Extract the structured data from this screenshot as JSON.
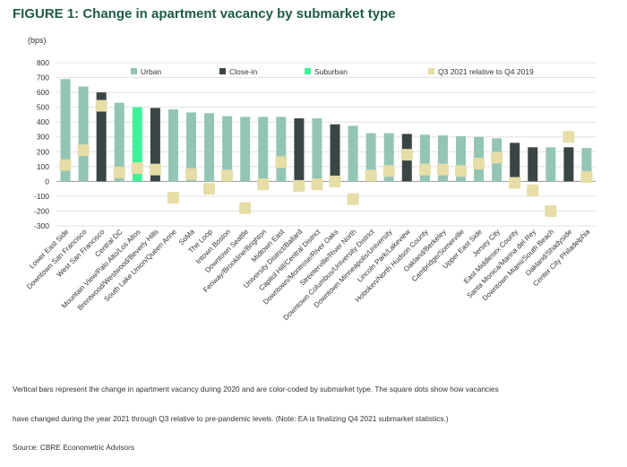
{
  "header": {
    "title": "FIGURE 1: Change in apartment vacancy by submarket type"
  },
  "footer": {
    "note_line1": "Vertical bars represent the change in apartment vacancy during 2020 and are color-coded by submarket type. The square dots show how vacancies",
    "note_line2": "have changed during the year 2021 through Q3 relative to pre-pandemic levels. (Note: EA is finalizing Q4 2021 submarket statistics.)",
    "source": "Source: CBRE Econometric Advisors"
  },
  "colors": {
    "urban": "#93c5b4",
    "close_in": "#3a4545",
    "suburban": "#3ff29a",
    "dot": "#e6dda7",
    "grid": "#e2e2e2",
    "zero_line": "#9a9a9a"
  },
  "chart_data": {
    "type": "bar",
    "ylabel": "(bps)",
    "ylim": [
      -300,
      800
    ],
    "yticks": [
      800,
      700,
      600,
      500,
      400,
      300,
      200,
      100,
      0,
      -100,
      -200,
      -300
    ],
    "grid": true,
    "legend": {
      "position": "top",
      "entries": [
        {
          "key": "urban",
          "label": "Urban"
        },
        {
          "key": "close_in",
          "label": "Close-in"
        },
        {
          "key": "suburban",
          "label": "Suburban"
        },
        {
          "key": "dot",
          "label": "Q3 2021 relative to Q4 2019"
        }
      ]
    },
    "categories": [
      "Lower East Side",
      "Downtown San Francisco",
      "West San Francisco",
      "Central DC",
      "Mountain View/Palo Alto/Los Altos",
      "Brentwood/Westwood/Beverly Hills",
      "South Lake Union/Queen Anne",
      "SoMa",
      "The Loop",
      "Intown Boston",
      "Downtown Seattle",
      "Fenway/Brookline/Brighton",
      "Midtown East",
      "University District/Ballard",
      "Capitol Hill/Central District",
      "Downtown/Montrose/River Oaks",
      "Streeterville/River North",
      "Downtown Columbus/University District",
      "Downtown Minneapolis/University",
      "Lincoln Park/Lakeview",
      "Hoboken/North Hudson County",
      "Oakland/Berkeley",
      "Cambridge/Somerville",
      "Upper East Side",
      "Jersey City",
      "East Middlesex County",
      "Santa Monica/Marina del Rey",
      "Downtown Miami/South Beach",
      "Oakland/Shadyside",
      "Center City Philadelphia"
    ],
    "types": [
      "urban",
      "urban",
      "close_in",
      "urban",
      "suburban",
      "close_in",
      "urban",
      "urban",
      "urban",
      "urban",
      "urban",
      "urban",
      "urban",
      "close_in",
      "urban",
      "close_in",
      "urban",
      "urban",
      "urban",
      "close_in",
      "urban",
      "urban",
      "urban",
      "urban",
      "urban",
      "close_in",
      "close_in",
      "urban",
      "close_in",
      "urban"
    ],
    "series": [
      {
        "name": "Vacancy change 2020",
        "values": [
          690,
          640,
          600,
          530,
          500,
          495,
          485,
          465,
          460,
          440,
          435,
          435,
          435,
          425,
          425,
          385,
          375,
          325,
          325,
          320,
          315,
          310,
          305,
          300,
          290,
          260,
          230,
          230,
          230,
          225
        ]
      },
      {
        "name": "Q3 2021 relative to Q4 2019",
        "values": [
          110,
          210,
          510,
          60,
          90,
          80,
          -110,
          50,
          -50,
          40,
          -180,
          -20,
          130,
          -30,
          -20,
          0,
          -120,
          40,
          70,
          180,
          80,
          80,
          70,
          120,
          160,
          -10,
          -60,
          -200,
          300,
          30
        ]
      }
    ]
  }
}
